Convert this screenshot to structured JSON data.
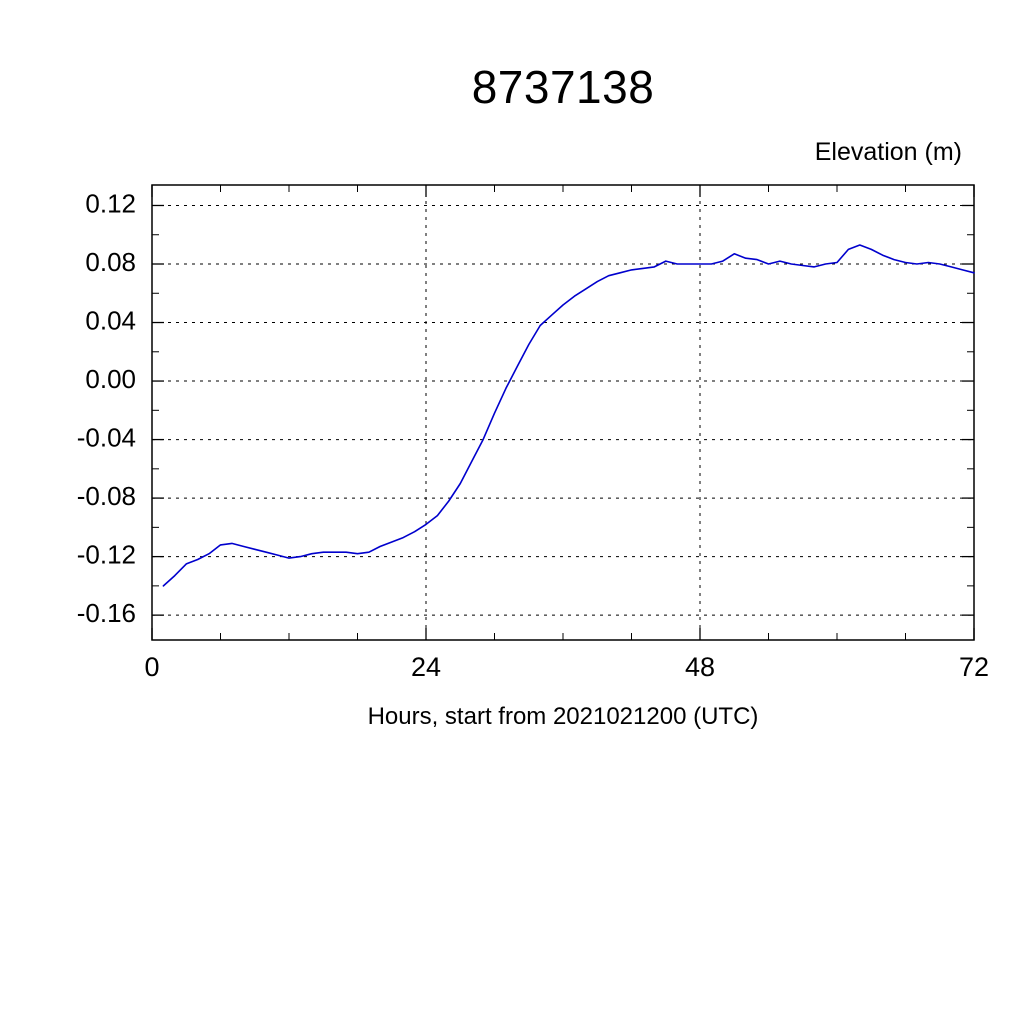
{
  "chart_data": {
    "type": "line",
    "title": "8737138",
    "ylabel": "Elevation (m)",
    "xlabel": "Hours, start from 2021021200 (UTC)",
    "xlim": [
      0,
      72
    ],
    "ylim": [
      -0.177,
      0.134
    ],
    "xticks": [
      0,
      24,
      48,
      72
    ],
    "xtick_labels": [
      "0",
      "24",
      "48",
      "72"
    ],
    "xminor_step": 6,
    "yticks": [
      0.12,
      0.08,
      0.04,
      0,
      -0.04,
      -0.08,
      -0.12,
      -0.16
    ],
    "ytick_labels": [
      "0.12",
      "0.08",
      "0.04",
      "0.00",
      "-0.04",
      "-0.08",
      "-0.12",
      "-0.16"
    ],
    "yminor_step": 0.02,
    "grid": {
      "style": "dashed",
      "x_values": [
        24,
        48
      ],
      "y_values": [
        0.12,
        0.08,
        0.04,
        0,
        -0.04,
        -0.08,
        -0.12,
        -0.16
      ]
    },
    "line_color": "#0000cd",
    "background_color": "#ffffff",
    "axis_color": "#000000",
    "legend": "none",
    "series": [
      {
        "name": "elevation",
        "x": [
          1,
          2,
          3,
          4,
          5,
          6,
          7,
          8,
          9,
          10,
          11,
          12,
          13,
          14,
          15,
          16,
          17,
          18,
          19,
          20,
          21,
          22,
          23,
          24,
          25,
          26,
          27,
          28,
          29,
          30,
          31,
          32,
          33,
          34,
          35,
          36,
          37,
          38,
          39,
          40,
          41,
          42,
          43,
          44,
          45,
          46,
          47,
          48,
          49,
          50,
          51,
          52,
          53,
          54,
          55,
          56,
          57,
          58,
          59,
          60,
          61,
          62,
          63,
          64,
          65,
          66,
          67,
          68,
          69,
          70,
          71,
          72
        ],
        "y": [
          -0.14,
          -0.133,
          -0.125,
          -0.122,
          -0.118,
          -0.112,
          -0.111,
          -0.113,
          -0.115,
          -0.117,
          -0.119,
          -0.121,
          -0.12,
          -0.118,
          -0.117,
          -0.117,
          -0.117,
          -0.118,
          -0.117,
          -0.113,
          -0.11,
          -0.107,
          -0.103,
          -0.098,
          -0.092,
          -0.082,
          -0.07,
          -0.055,
          -0.04,
          -0.022,
          -0.005,
          0.01,
          0.025,
          0.038,
          0.045,
          0.052,
          0.058,
          0.063,
          0.068,
          0.072,
          0.074,
          0.076,
          0.077,
          0.078,
          0.082,
          0.08,
          0.08,
          0.08,
          0.08,
          0.082,
          0.087,
          0.084,
          0.083,
          0.08,
          0.082,
          0.08,
          0.079,
          0.078,
          0.08,
          0.081,
          0.09,
          0.093,
          0.09,
          0.086,
          0.083,
          0.081,
          0.08,
          0.081,
          0.08,
          0.078,
          0.076,
          0.074
        ]
      }
    ]
  }
}
